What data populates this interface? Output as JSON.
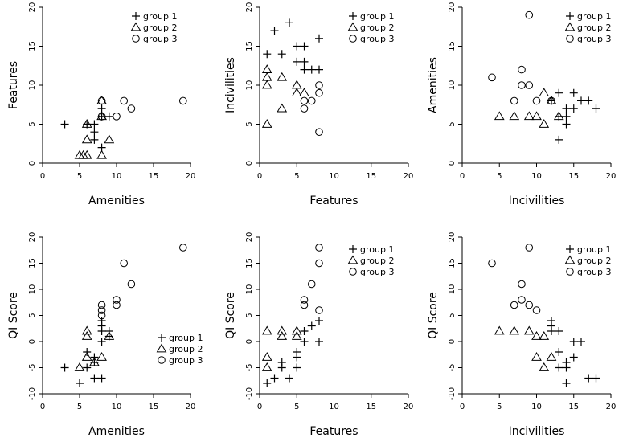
{
  "chart_data": [
    {
      "type": "scatter",
      "xlabel": "Amenities",
      "ylabel": "Features",
      "xlim": [
        0,
        20
      ],
      "ylim": [
        0,
        20
      ],
      "xticks": [
        "0",
        "5",
        "10",
        "15",
        "20"
      ],
      "yticks": [
        "0",
        "5",
        "10",
        "15",
        "20"
      ],
      "grid": false,
      "legend_position": "top-right",
      "series": [
        {
          "name": "group 1",
          "marker": "plus",
          "points": [
            [
              3,
              5
            ],
            [
              6,
              5
            ],
            [
              7,
              3
            ],
            [
              7,
              4
            ],
            [
              7,
              5
            ],
            [
              8,
              2
            ],
            [
              8,
              6
            ],
            [
              8,
              7
            ],
            [
              9,
              6
            ]
          ]
        },
        {
          "name": "group 2",
          "marker": "triangle",
          "points": [
            [
              5,
              1
            ],
            [
              5.5,
              1
            ],
            [
              6,
              1
            ],
            [
              6,
              3
            ],
            [
              6,
              5
            ],
            [
              8,
              1
            ],
            [
              8,
              6
            ],
            [
              8,
              8
            ],
            [
              9,
              3
            ]
          ]
        },
        {
          "name": "group 3",
          "marker": "circle",
          "points": [
            [
              8,
              6
            ],
            [
              8,
              8
            ],
            [
              10,
              6
            ],
            [
              11,
              8
            ],
            [
              12,
              7
            ],
            [
              19,
              8
            ]
          ]
        }
      ]
    },
    {
      "type": "scatter",
      "xlabel": "Features",
      "ylabel": "Incivilities",
      "xlim": [
        0,
        20
      ],
      "ylim": [
        0,
        20
      ],
      "xticks": [
        "0",
        "5",
        "10",
        "15",
        "20"
      ],
      "yticks": [
        "0",
        "5",
        "10",
        "15",
        "20"
      ],
      "grid": false,
      "legend_position": "top-right",
      "series": [
        {
          "name": "group 1",
          "marker": "plus",
          "points": [
            [
              1,
              14
            ],
            [
              2,
              17
            ],
            [
              3,
              14
            ],
            [
              4,
              18
            ],
            [
              5,
              13
            ],
            [
              5,
              15
            ],
            [
              6,
              12
            ],
            [
              6,
              13
            ],
            [
              6,
              15
            ],
            [
              7,
              12
            ],
            [
              8,
              12
            ],
            [
              8,
              16
            ]
          ]
        },
        {
          "name": "group 2",
          "marker": "triangle",
          "points": [
            [
              1,
              5
            ],
            [
              1,
              10
            ],
            [
              1,
              11
            ],
            [
              1,
              12
            ],
            [
              3,
              7
            ],
            [
              3,
              11
            ],
            [
              5,
              9
            ],
            [
              5,
              10
            ],
            [
              6,
              9
            ]
          ]
        },
        {
          "name": "group 3",
          "marker": "circle",
          "points": [
            [
              6,
              7
            ],
            [
              6,
              8
            ],
            [
              7,
              8
            ],
            [
              8,
              4
            ],
            [
              8,
              9
            ],
            [
              8,
              10
            ]
          ]
        }
      ]
    },
    {
      "type": "scatter",
      "xlabel": "Incivilities",
      "ylabel": "Amenities",
      "xlim": [
        0,
        20
      ],
      "ylim": [
        0,
        20
      ],
      "xticks": [
        "0",
        "5",
        "10",
        "15",
        "20"
      ],
      "yticks": [
        "0",
        "5",
        "10",
        "15",
        "20"
      ],
      "grid": false,
      "legend_position": "top-right",
      "series": [
        {
          "name": "group 1",
          "marker": "plus",
          "points": [
            [
              12,
              8
            ],
            [
              13,
              3
            ],
            [
              13,
              6
            ],
            [
              13,
              9
            ],
            [
              14,
              5
            ],
            [
              14,
              6
            ],
            [
              14,
              7
            ],
            [
              15,
              7
            ],
            [
              15,
              9
            ],
            [
              16,
              8
            ],
            [
              17,
              8
            ],
            [
              18,
              7
            ]
          ]
        },
        {
          "name": "group 2",
          "marker": "triangle",
          "points": [
            [
              5,
              6
            ],
            [
              7,
              6
            ],
            [
              9,
              6
            ],
            [
              10,
              6
            ],
            [
              11,
              5
            ],
            [
              11,
              9
            ],
            [
              12,
              8
            ],
            [
              13,
              6
            ]
          ]
        },
        {
          "name": "group 3",
          "marker": "circle",
          "points": [
            [
              4,
              11
            ],
            [
              7,
              8
            ],
            [
              8,
              10
            ],
            [
              8,
              12
            ],
            [
              9,
              10
            ],
            [
              9,
              19
            ],
            [
              10,
              8
            ],
            [
              12,
              8
            ]
          ]
        }
      ]
    },
    {
      "type": "scatter",
      "xlabel": "Amenities",
      "ylabel": "QI Score",
      "xlim": [
        0,
        20
      ],
      "ylim": [
        -10,
        20
      ],
      "xticks": [
        "0",
        "5",
        "10",
        "15",
        "20"
      ],
      "yticks": [
        "-10",
        "-5",
        "0",
        "5",
        "10",
        "15",
        "20"
      ],
      "grid": false,
      "legend_position": "bottom-right",
      "series": [
        {
          "name": "group 1",
          "marker": "plus",
          "points": [
            [
              3,
              -5
            ],
            [
              5,
              -8
            ],
            [
              6,
              -5
            ],
            [
              6,
              -2
            ],
            [
              7,
              -3
            ],
            [
              7,
              -4
            ],
            [
              7,
              -7
            ],
            [
              8,
              -7
            ],
            [
              8,
              0
            ],
            [
              8,
              2
            ],
            [
              8,
              3
            ],
            [
              8,
              4
            ],
            [
              9,
              1
            ],
            [
              9,
              2
            ]
          ]
        },
        {
          "name": "group 2",
          "marker": "triangle",
          "points": [
            [
              5,
              -5
            ],
            [
              6,
              -3
            ],
            [
              6,
              1
            ],
            [
              6,
              2
            ],
            [
              7,
              -4
            ],
            [
              8,
              -3
            ],
            [
              9,
              1
            ]
          ]
        },
        {
          "name": "group 3",
          "marker": "circle",
          "points": [
            [
              8,
              5
            ],
            [
              8,
              6
            ],
            [
              8,
              7
            ],
            [
              10,
              7
            ],
            [
              10,
              8
            ],
            [
              11,
              15
            ],
            [
              12,
              11
            ],
            [
              19,
              18
            ]
          ]
        }
      ]
    },
    {
      "type": "scatter",
      "xlabel": "Features",
      "ylabel": "QI Score",
      "xlim": [
        0,
        20
      ],
      "ylim": [
        -10,
        20
      ],
      "xticks": [
        "0",
        "5",
        "10",
        "15",
        "20"
      ],
      "yticks": [
        "-10",
        "-5",
        "0",
        "5",
        "10",
        "15",
        "20"
      ],
      "grid": false,
      "legend_position": "top-right",
      "series": [
        {
          "name": "group 1",
          "marker": "plus",
          "points": [
            [
              1,
              -8
            ],
            [
              2,
              -7
            ],
            [
              3,
              -4
            ],
            [
              3,
              -5
            ],
            [
              4,
              -7
            ],
            [
              5,
              -2
            ],
            [
              5,
              -3
            ],
            [
              5,
              -5
            ],
            [
              6,
              0
            ],
            [
              6,
              2
            ],
            [
              7,
              3
            ],
            [
              8,
              0
            ],
            [
              8,
              4
            ]
          ]
        },
        {
          "name": "group 2",
          "marker": "triangle",
          "points": [
            [
              1,
              -3
            ],
            [
              1,
              -5
            ],
            [
              1,
              2
            ],
            [
              3,
              1
            ],
            [
              3,
              2
            ],
            [
              5,
              1
            ],
            [
              5,
              2
            ]
          ]
        },
        {
          "name": "group 3",
          "marker": "circle",
          "points": [
            [
              6,
              7
            ],
            [
              6,
              8
            ],
            [
              7,
              11
            ],
            [
              8,
              6
            ],
            [
              8,
              15
            ],
            [
              8,
              18
            ]
          ]
        }
      ]
    },
    {
      "type": "scatter",
      "xlabel": "Incivilities",
      "ylabel": "QI Score",
      "xlim": [
        0,
        20
      ],
      "ylim": [
        -10,
        20
      ],
      "xticks": [
        "0",
        "5",
        "10",
        "15",
        "20"
      ],
      "yticks": [
        "-10",
        "-5",
        "0",
        "5",
        "10",
        "15",
        "20"
      ],
      "grid": false,
      "legend_position": "top-right",
      "series": [
        {
          "name": "group 1",
          "marker": "plus",
          "points": [
            [
              12,
              2
            ],
            [
              12,
              3
            ],
            [
              12,
              4
            ],
            [
              13,
              -2
            ],
            [
              13,
              -5
            ],
            [
              13,
              2
            ],
            [
              14,
              -4
            ],
            [
              14,
              -5
            ],
            [
              14,
              -8
            ],
            [
              15,
              -3
            ],
            [
              15,
              0
            ],
            [
              16,
              0
            ],
            [
              17,
              -7
            ],
            [
              18,
              -7
            ]
          ]
        },
        {
          "name": "group 2",
          "marker": "triangle",
          "points": [
            [
              5,
              2
            ],
            [
              7,
              2
            ],
            [
              9,
              2
            ],
            [
              10,
              -3
            ],
            [
              10,
              1
            ],
            [
              11,
              -5
            ],
            [
              11,
              1
            ],
            [
              12,
              -3
            ]
          ]
        },
        {
          "name": "group 3",
          "marker": "circle",
          "points": [
            [
              4,
              15
            ],
            [
              7,
              7
            ],
            [
              8,
              8
            ],
            [
              8,
              11
            ],
            [
              9,
              7
            ],
            [
              9,
              18
            ],
            [
              10,
              6
            ]
          ]
        }
      ]
    }
  ]
}
